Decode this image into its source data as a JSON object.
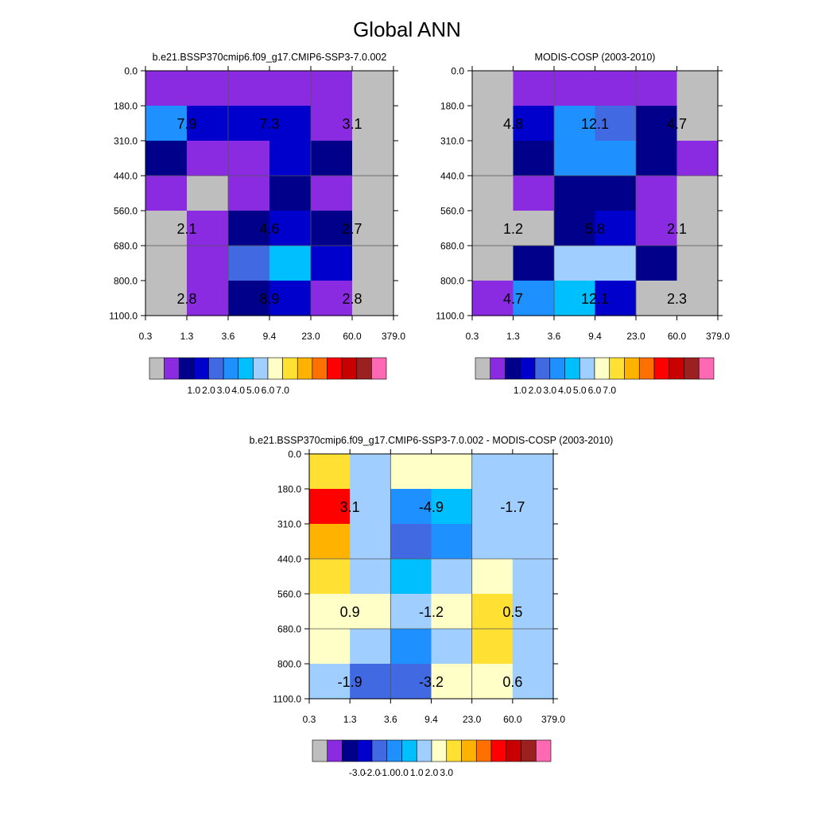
{
  "title": "Global ANN",
  "chart_data": [
    {
      "type": "heatmap",
      "title": "b.e21.BSSP370cmip6.f09_g17.CMIP6-SSP3-7.0.002",
      "x_ticks": [
        "0.3",
        "1.3",
        "3.6",
        "9.4",
        "23.0",
        "60.0",
        "379.0"
      ],
      "y_ticks": [
        "0.0",
        "180.0",
        "310.0",
        "440.0",
        "560.0",
        "680.0",
        "800.0",
        "1100.0"
      ],
      "cells": [
        [
          "#8a2be2",
          "#8a2be2",
          "#8a2be2",
          "#8a2be2",
          "#8a2be2",
          "#bebebe"
        ],
        [
          "#1e90ff",
          "#0000cd",
          "#0000cd",
          "#0000cd",
          "#8a2be2",
          "#bebebe"
        ],
        [
          "#00008b",
          "#8a2be2",
          "#8a2be2",
          "#0000cd",
          "#00008b",
          "#bebebe"
        ],
        [
          "#8a2be2",
          "#bebebe",
          "#8a2be2",
          "#00008b",
          "#8a2be2",
          "#bebebe"
        ],
        [
          "#bebebe",
          "#8a2be2",
          "#00008b",
          "#0000cd",
          "#00008b",
          "#bebebe"
        ],
        [
          "#bebebe",
          "#8a2be2",
          "#4169e1",
          "#00bfff",
          "#0000cd",
          "#bebebe"
        ],
        [
          "#bebebe",
          "#8a2be2",
          "#00008b",
          "#0000cd",
          "#8a2be2",
          "#bebebe"
        ]
      ],
      "labels": [
        {
          "col": 0,
          "row": 1,
          "text": "7.9"
        },
        {
          "col": 1,
          "row": 1,
          "text": "7.3"
        },
        {
          "col": 2,
          "row": 1,
          "text": "3.1"
        },
        {
          "col": 0,
          "row": 4,
          "text": "2.1"
        },
        {
          "col": 1,
          "row": 4,
          "text": "4.6"
        },
        {
          "col": 2,
          "row": 4,
          "text": "2.7"
        },
        {
          "col": 0,
          "row": 6,
          "text": "2.8"
        },
        {
          "col": 1,
          "row": 6,
          "text": "8.9"
        },
        {
          "col": 2,
          "row": 6,
          "text": "2.8"
        }
      ],
      "colorbar": {
        "colors": [
          "#bebebe",
          "#8a2be2",
          "#00008b",
          "#0000cd",
          "#4169e1",
          "#1e90ff",
          "#00bfff",
          "#a0cfff",
          "#ffffc8",
          "#ffe033",
          "#ffb300",
          "#ff7000",
          "#ff0000",
          "#c80000",
          "#9b2020",
          "#ff69b4"
        ],
        "labels": [
          {
            "after": 2,
            "text": "1.0"
          },
          {
            "after": 3,
            "text": "2.0"
          },
          {
            "after": 4,
            "text": "3.0"
          },
          {
            "after": 5,
            "text": "4.0"
          },
          {
            "after": 6,
            "text": "5.0"
          },
          {
            "after": 7,
            "text": "6.0"
          },
          {
            "after": 8,
            "text": "7.0"
          }
        ]
      }
    },
    {
      "type": "heatmap",
      "title": "MODIS-COSP (2003-2010)",
      "x_ticks": [
        "0.3",
        "1.3",
        "3.6",
        "9.4",
        "23.0",
        "60.0",
        "379.0"
      ],
      "y_ticks": [
        "0.0",
        "180.0",
        "310.0",
        "440.0",
        "560.0",
        "680.0",
        "800.0",
        "1100.0"
      ],
      "cells": [
        [
          "#bebebe",
          "#8a2be2",
          "#8a2be2",
          "#8a2be2",
          "#8a2be2",
          "#bebebe"
        ],
        [
          "#bebebe",
          "#0000cd",
          "#1e90ff",
          "#4169e1",
          "#00008b",
          "#bebebe"
        ],
        [
          "#bebebe",
          "#00008b",
          "#1e90ff",
          "#1e90ff",
          "#00008b",
          "#8a2be2"
        ],
        [
          "#bebebe",
          "#8a2be2",
          "#00008b",
          "#00008b",
          "#8a2be2",
          "#bebebe"
        ],
        [
          "#bebebe",
          "#bebebe",
          "#00008b",
          "#0000cd",
          "#8a2be2",
          "#bebebe"
        ],
        [
          "#bebebe",
          "#00008b",
          "#a0cfff",
          "#a0cfff",
          "#00008b",
          "#bebebe"
        ],
        [
          "#8a2be2",
          "#1e90ff",
          "#00bfff",
          "#0000cd",
          "#bebebe",
          "#bebebe"
        ]
      ],
      "labels": [
        {
          "col": 0,
          "row": 1,
          "text": "4.8"
        },
        {
          "col": 1,
          "row": 1,
          "text": "12.1"
        },
        {
          "col": 2,
          "row": 1,
          "text": "4.7"
        },
        {
          "col": 0,
          "row": 4,
          "text": "1.2"
        },
        {
          "col": 1,
          "row": 4,
          "text": "5.8"
        },
        {
          "col": 2,
          "row": 4,
          "text": "2.1"
        },
        {
          "col": 0,
          "row": 6,
          "text": "4.7"
        },
        {
          "col": 1,
          "row": 6,
          "text": "12.1"
        },
        {
          "col": 2,
          "row": 6,
          "text": "2.3"
        }
      ],
      "colorbar": {
        "colors": [
          "#bebebe",
          "#8a2be2",
          "#00008b",
          "#0000cd",
          "#4169e1",
          "#1e90ff",
          "#00bfff",
          "#a0cfff",
          "#ffffc8",
          "#ffe033",
          "#ffb300",
          "#ff7000",
          "#ff0000",
          "#c80000",
          "#9b2020",
          "#ff69b4"
        ],
        "labels": [
          {
            "after": 2,
            "text": "1.0"
          },
          {
            "after": 3,
            "text": "2.0"
          },
          {
            "after": 4,
            "text": "3.0"
          },
          {
            "after": 5,
            "text": "4.0"
          },
          {
            "after": 6,
            "text": "5.0"
          },
          {
            "after": 7,
            "text": "6.0"
          },
          {
            "after": 8,
            "text": "7.0"
          }
        ]
      }
    },
    {
      "type": "heatmap",
      "title": "b.e21.BSSP370cmip6.f09_g17.CMIP6-SSP3-7.0.002 - MODIS-COSP (2003-2010)",
      "x_ticks": [
        "0.3",
        "1.3",
        "3.6",
        "9.4",
        "23.0",
        "60.0",
        "379.0"
      ],
      "y_ticks": [
        "0.0",
        "180.0",
        "310.0",
        "440.0",
        "560.0",
        "680.0",
        "800.0",
        "1100.0"
      ],
      "cells": [
        [
          "#ffe033",
          "#a0cfff",
          "#ffffc8",
          "#ffffc8",
          "#a0cfff",
          "#a0cfff"
        ],
        [
          "#ff0000",
          "#a0cfff",
          "#1e90ff",
          "#00bfff",
          "#a0cfff",
          "#a0cfff"
        ],
        [
          "#ffb300",
          "#a0cfff",
          "#4169e1",
          "#1e90ff",
          "#a0cfff",
          "#a0cfff"
        ],
        [
          "#ffe033",
          "#a0cfff",
          "#00bfff",
          "#a0cfff",
          "#ffffc8",
          "#a0cfff"
        ],
        [
          "#ffffc8",
          "#ffffc8",
          "#a0cfff",
          "#ffffc8",
          "#ffe033",
          "#a0cfff"
        ],
        [
          "#ffffc8",
          "#a0cfff",
          "#1e90ff",
          "#a0cfff",
          "#ffe033",
          "#a0cfff"
        ],
        [
          "#a0cfff",
          "#4169e1",
          "#4169e1",
          "#ffffc8",
          "#ffffc8",
          "#a0cfff"
        ]
      ],
      "labels": [
        {
          "col": 0,
          "row": 1,
          "text": "3.1"
        },
        {
          "col": 1,
          "row": 1,
          "text": "-4.9"
        },
        {
          "col": 2,
          "row": 1,
          "text": "-1.7"
        },
        {
          "col": 0,
          "row": 4,
          "text": "0.9"
        },
        {
          "col": 1,
          "row": 4,
          "text": "-1.2"
        },
        {
          "col": 2,
          "row": 4,
          "text": "0.5"
        },
        {
          "col": 0,
          "row": 6,
          "text": "-1.9"
        },
        {
          "col": 1,
          "row": 6,
          "text": "-3.2"
        },
        {
          "col": 2,
          "row": 6,
          "text": "0.6"
        }
      ],
      "colorbar": {
        "colors": [
          "#bebebe",
          "#8a2be2",
          "#00008b",
          "#0000cd",
          "#4169e1",
          "#1e90ff",
          "#00bfff",
          "#a0cfff",
          "#ffffc8",
          "#ffe033",
          "#ffb300",
          "#ff7000",
          "#ff0000",
          "#c80000",
          "#9b2020",
          "#ff69b4"
        ],
        "labels": [
          {
            "after": 2,
            "text": "-3.0"
          },
          {
            "after": 3,
            "text": "-2.0"
          },
          {
            "after": 4,
            "text": "-1.0"
          },
          {
            "after": 5,
            "text": "0.0"
          },
          {
            "after": 6,
            "text": "1.0"
          },
          {
            "after": 7,
            "text": "2.0"
          },
          {
            "after": 8,
            "text": "3.0"
          }
        ]
      }
    }
  ]
}
